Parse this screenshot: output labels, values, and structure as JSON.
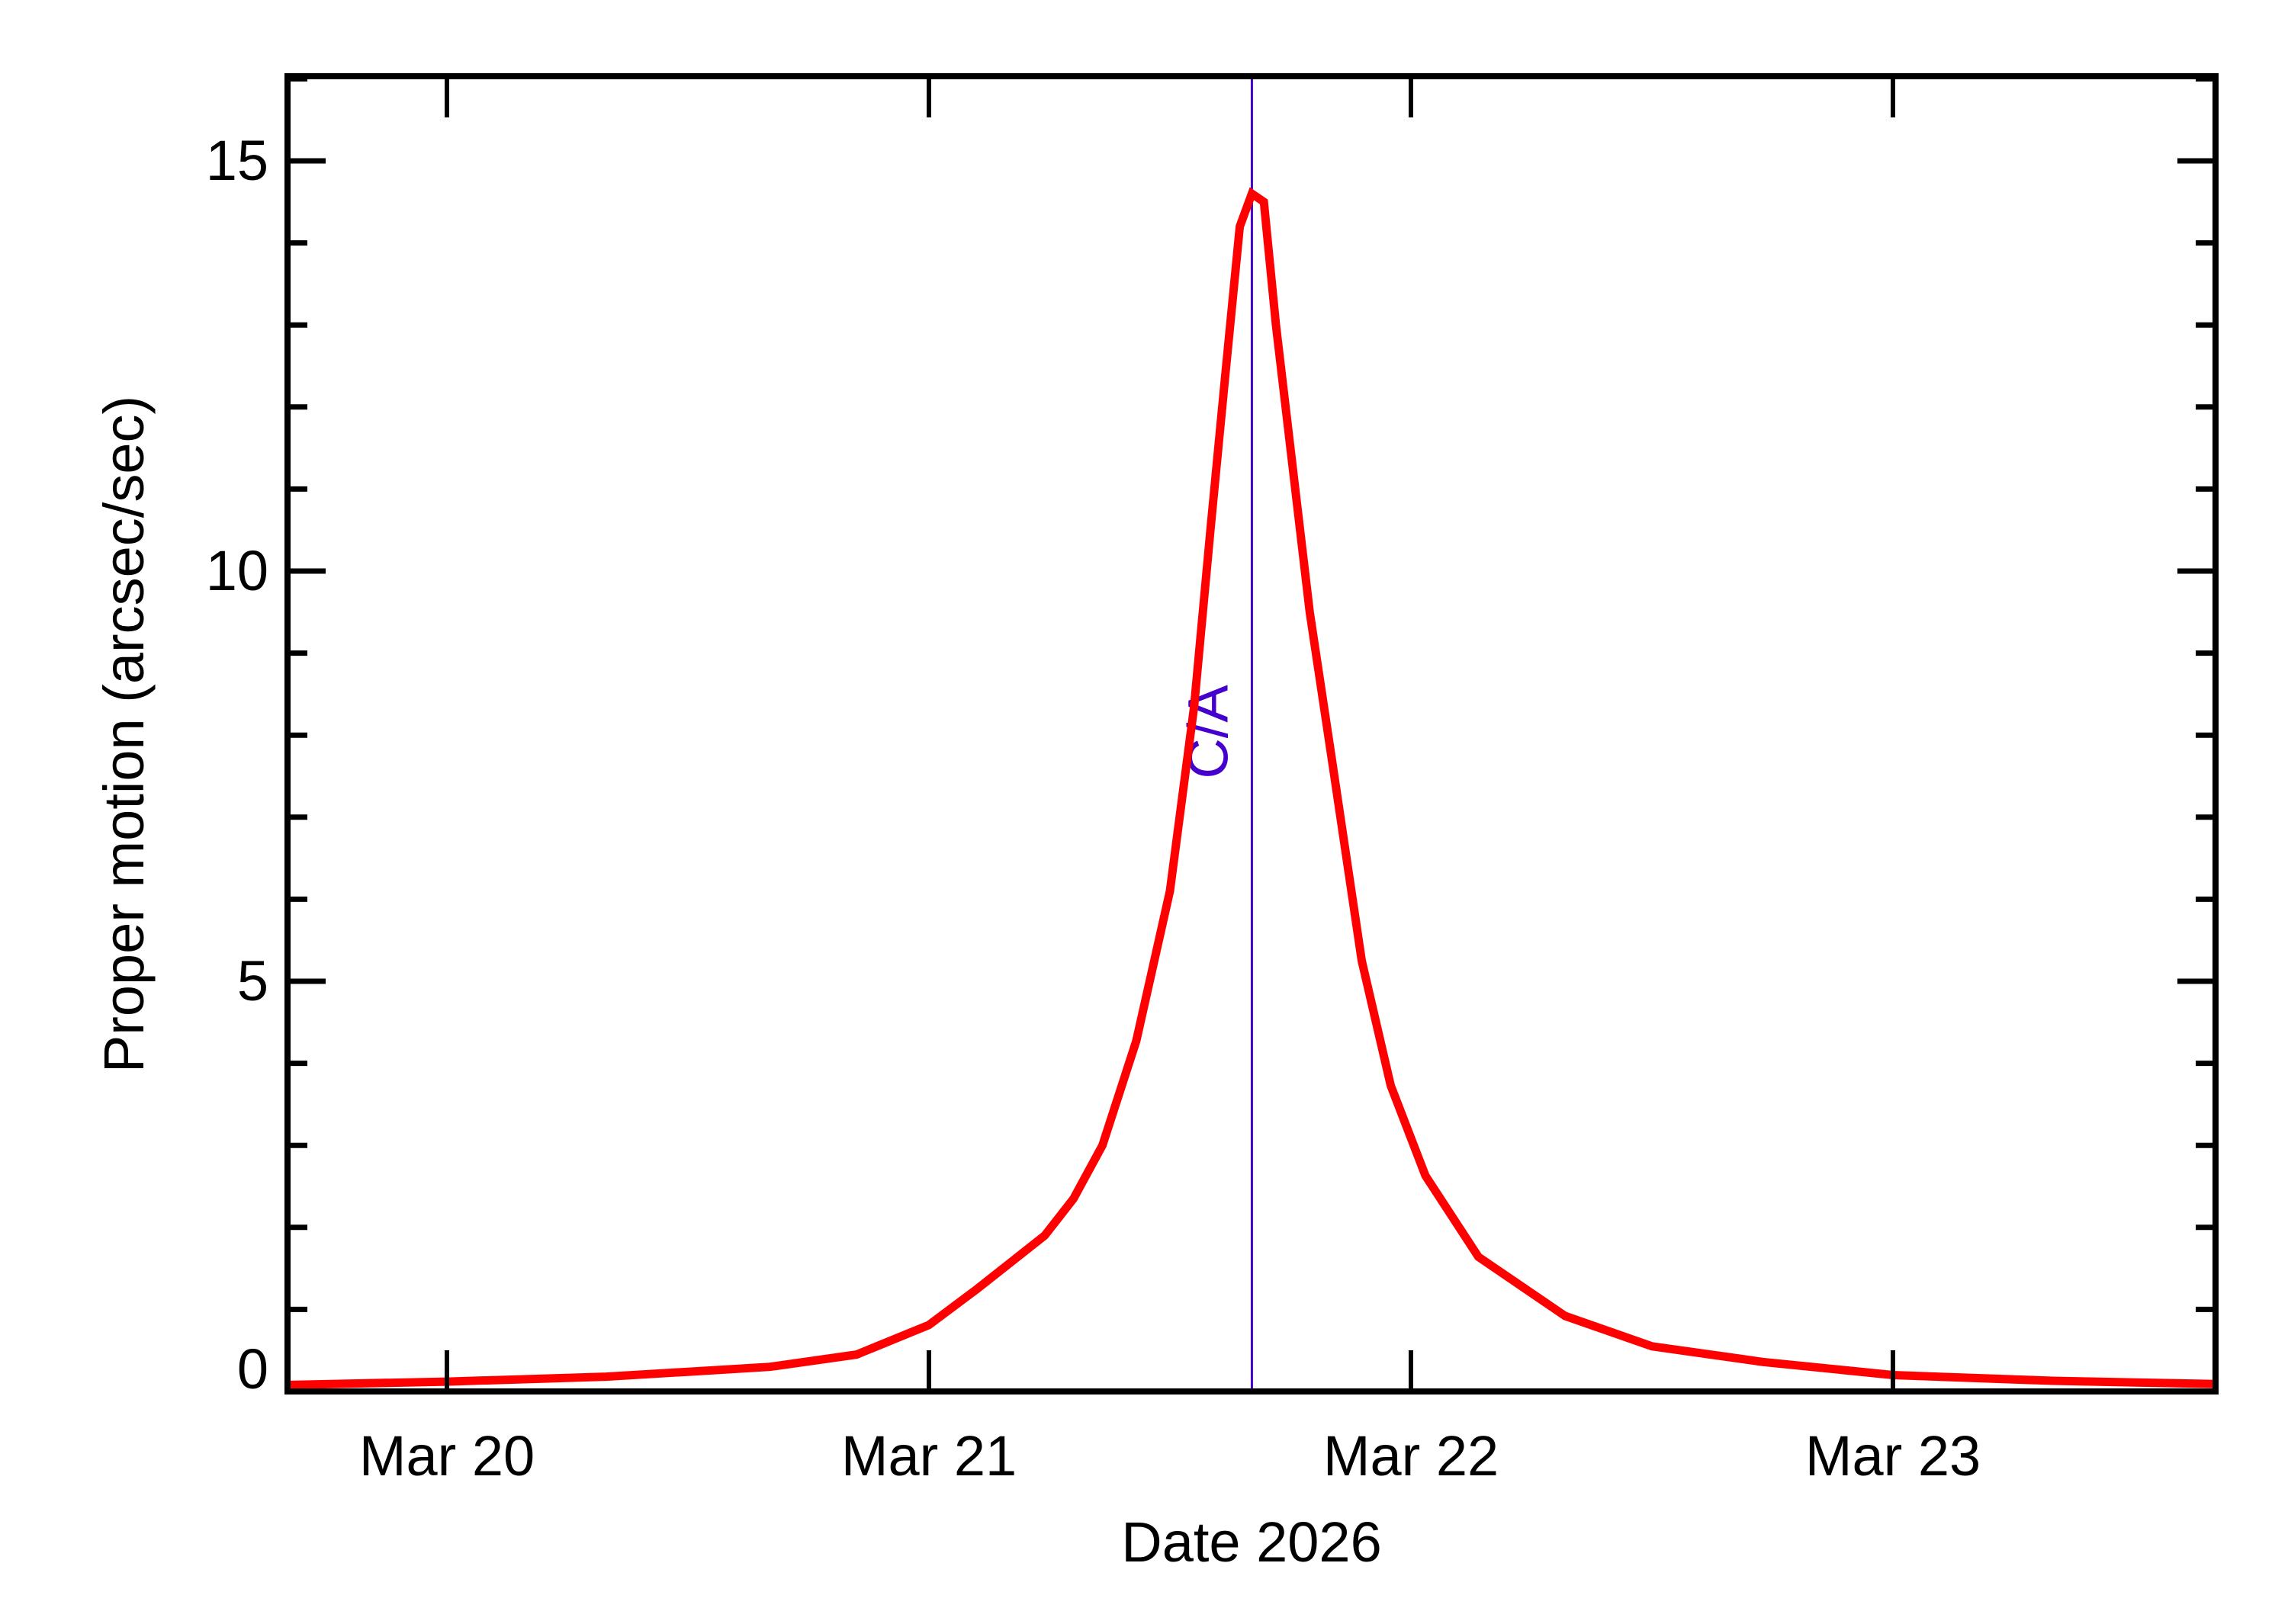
{
  "chart_data": {
    "type": "line",
    "title": "",
    "xlabel": "Date 2026",
    "ylabel": "Proper motion (arcsec/sec)",
    "xlim": [
      19.67,
      23.67
    ],
    "ylim": [
      0,
      16.03
    ],
    "grid": false,
    "legend": null,
    "x_ticks": [
      {
        "value": 20,
        "label": "Mar 20"
      },
      {
        "value": 21,
        "label": "Mar 21"
      },
      {
        "value": 22,
        "label": "Mar 22"
      },
      {
        "value": 23,
        "label": "Mar 23"
      }
    ],
    "x_minor_ticks": [],
    "y_ticks": [
      {
        "value": 0,
        "label": "0"
      },
      {
        "value": 5,
        "label": "5"
      },
      {
        "value": 10,
        "label": "10"
      },
      {
        "value": 15,
        "label": "15"
      }
    ],
    "y_minor_ticks": [
      1,
      2,
      3,
      4,
      6,
      7,
      8,
      9,
      11,
      12,
      13,
      14,
      16
    ],
    "series": [
      {
        "name": "Proper motion",
        "color": "#ff0000",
        "x_unit": "day of March 2026",
        "points": [
          [
            19.67,
            0.08
          ],
          [
            20.0,
            0.12
          ],
          [
            20.33,
            0.18
          ],
          [
            20.5,
            0.24
          ],
          [
            20.67,
            0.3
          ],
          [
            20.85,
            0.45
          ],
          [
            21.0,
            0.81
          ],
          [
            21.1,
            1.25
          ],
          [
            21.24,
            1.9
          ],
          [
            21.3,
            2.35
          ],
          [
            21.36,
            3.0
          ],
          [
            21.43,
            4.27
          ],
          [
            21.5,
            6.1
          ],
          [
            21.55,
            8.34
          ],
          [
            21.585,
            10.56
          ],
          [
            21.615,
            12.4
          ],
          [
            21.645,
            14.2
          ],
          [
            21.67,
            14.6
          ],
          [
            21.695,
            14.5
          ],
          [
            21.72,
            13.0
          ],
          [
            21.79,
            9.5
          ],
          [
            21.836,
            7.7
          ],
          [
            21.898,
            5.25
          ],
          [
            21.958,
            3.73
          ],
          [
            22.03,
            2.63
          ],
          [
            22.14,
            1.64
          ],
          [
            22.32,
            0.92
          ],
          [
            22.5,
            0.55
          ],
          [
            22.73,
            0.36
          ],
          [
            23.0,
            0.2
          ],
          [
            23.33,
            0.13
          ],
          [
            23.67,
            0.09
          ]
        ]
      }
    ],
    "annotations": [
      {
        "type": "vline",
        "x": 21.67,
        "label": "C/A",
        "color": "#4400cc"
      }
    ]
  },
  "labels": {
    "xlabel": "Date 2026",
    "ylabel": "Proper motion (arcsec/sec)",
    "ca": "C/A",
    "xticks": [
      "Mar 20",
      "Mar 21",
      "Mar 22",
      "Mar 23"
    ],
    "yticks": [
      "0",
      "5",
      "10",
      "15"
    ]
  },
  "colors": {
    "curve": "#ff0000",
    "ca_line": "#4400cc",
    "axis": "#000000",
    "background": "#ffffff"
  }
}
